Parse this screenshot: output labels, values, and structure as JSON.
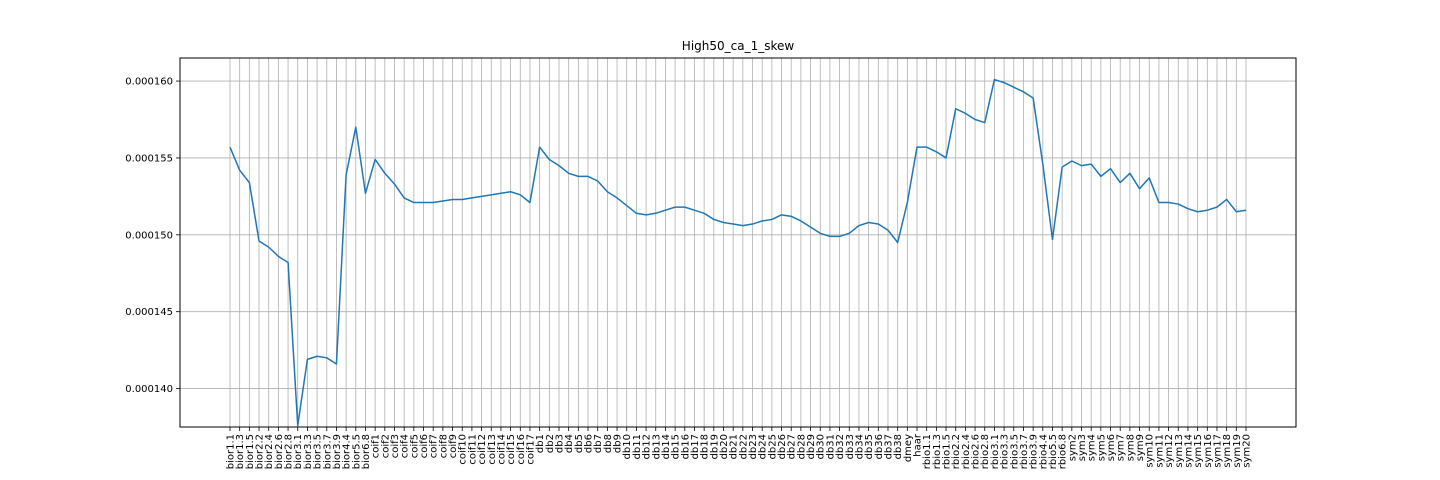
{
  "chart_data": {
    "type": "line",
    "title": "High50_ca_1_skew",
    "xlabel": "",
    "ylabel": "",
    "grid": true,
    "ylim": [
      0.0001375,
      0.0001615
    ],
    "yticks": [
      0.00014,
      0.000145,
      0.00015,
      0.000155,
      0.00016
    ],
    "ytick_labels": [
      "0.000140",
      "0.000145",
      "0.000150",
      "0.000155",
      "0.000160"
    ],
    "line_color": "#1f77b4",
    "grid_color": "#b0b0b0",
    "categories": [
      "bior1.1",
      "bior1.3",
      "bior1.5",
      "bior2.2",
      "bior2.4",
      "bior2.6",
      "bior2.8",
      "bior3.1",
      "bior3.3",
      "bior3.5",
      "bior3.7",
      "bior3.9",
      "bior4.4",
      "bior5.5",
      "bior6.8",
      "coif1",
      "coif2",
      "coif3",
      "coif4",
      "coif5",
      "coif6",
      "coif7",
      "coif8",
      "coif9",
      "coif10",
      "coif11",
      "coif12",
      "coif13",
      "coif14",
      "coif15",
      "coif16",
      "coif17",
      "db1",
      "db2",
      "db3",
      "db4",
      "db5",
      "db6",
      "db7",
      "db8",
      "db9",
      "db10",
      "db11",
      "db12",
      "db13",
      "db14",
      "db15",
      "db16",
      "db17",
      "db18",
      "db19",
      "db20",
      "db21",
      "db22",
      "db23",
      "db24",
      "db25",
      "db26",
      "db27",
      "db28",
      "db29",
      "db30",
      "db31",
      "db32",
      "db33",
      "db34",
      "db35",
      "db36",
      "db37",
      "db38",
      "dmey",
      "haar",
      "rbio1.1",
      "rbio1.3",
      "rbio1.5",
      "rbio2.2",
      "rbio2.4",
      "rbio2.6",
      "rbio2.8",
      "rbio3.1",
      "rbio3.3",
      "rbio3.5",
      "rbio3.7",
      "rbio3.9",
      "rbio4.4",
      "rbio5.5",
      "rbio6.8",
      "sym2",
      "sym3",
      "sym4",
      "sym5",
      "sym6",
      "sym7",
      "sym8",
      "sym9",
      "sym10",
      "sym11",
      "sym12",
      "sym13",
      "sym14",
      "sym15",
      "sym16",
      "sym17",
      "sym18",
      "sym19",
      "sym20"
    ],
    "values": [
      0.0001557,
      0.0001542,
      0.0001534,
      0.0001496,
      0.0001492,
      0.0001486,
      0.0001482,
      0.0001376,
      0.0001419,
      0.0001421,
      0.000142,
      0.0001416,
      0.0001539,
      0.000157,
      0.0001527,
      0.0001549,
      0.000154,
      0.0001533,
      0.0001524,
      0.0001521,
      0.0001521,
      0.0001521,
      0.0001522,
      0.0001523,
      0.0001523,
      0.0001524,
      0.0001525,
      0.0001526,
      0.0001527,
      0.0001528,
      0.0001526,
      0.0001521,
      0.0001557,
      0.0001549,
      0.0001545,
      0.000154,
      0.0001538,
      0.0001538,
      0.0001535,
      0.0001528,
      0.0001524,
      0.0001519,
      0.0001514,
      0.0001513,
      0.0001514,
      0.0001516,
      0.0001518,
      0.0001518,
      0.0001516,
      0.0001514,
      0.000151,
      0.0001508,
      0.0001507,
      0.0001506,
      0.0001507,
      0.0001509,
      0.000151,
      0.0001513,
      0.0001512,
      0.0001509,
      0.0001505,
      0.0001501,
      0.0001499,
      0.0001499,
      0.0001501,
      0.0001506,
      0.0001508,
      0.0001507,
      0.0001503,
      0.0001495,
      0.0001521,
      0.0001557,
      0.0001557,
      0.0001554,
      0.000155,
      0.0001582,
      0.0001579,
      0.0001575,
      0.0001573,
      0.0001601,
      0.0001599,
      0.0001596,
      0.0001593,
      0.0001589,
      0.0001546,
      0.0001497,
      0.0001544,
      0.0001548,
      0.0001545,
      0.0001546,
      0.0001538,
      0.0001543,
      0.0001534,
      0.000154,
      0.000153,
      0.0001537,
      0.0001521,
      0.0001521,
      0.000152,
      0.0001517,
      0.0001515,
      0.0001516,
      0.0001518,
      0.0001523,
      0.0001515,
      0.0001516
    ]
  }
}
